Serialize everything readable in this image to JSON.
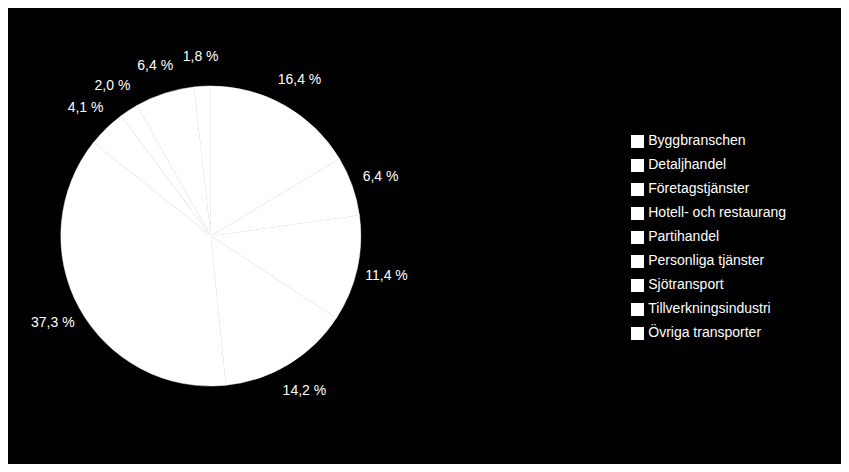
{
  "chart_data": {
    "type": "pie",
    "categories": [
      "Tillverkningsindustri",
      "Byggbranschen",
      "Partihandel",
      "Detaljhandel",
      "Sjötransport",
      "Övriga transporter",
      "Hotell- och restaurang",
      "Företagstjänster",
      "Personliga tjänster"
    ],
    "values": [
      16.4,
      6.4,
      11.4,
      14.2,
      37.3,
      4.1,
      2.0,
      6.4,
      1.8
    ],
    "value_labels": [
      "16,4 %",
      "6,4 %",
      "11,4 %",
      "14,2 %",
      "37,3 %",
      "4,1 %",
      "2,0 %",
      "6,4 %",
      "1,8 %"
    ],
    "color": "#ffffff",
    "data_labels": true,
    "legend": "right"
  }
}
